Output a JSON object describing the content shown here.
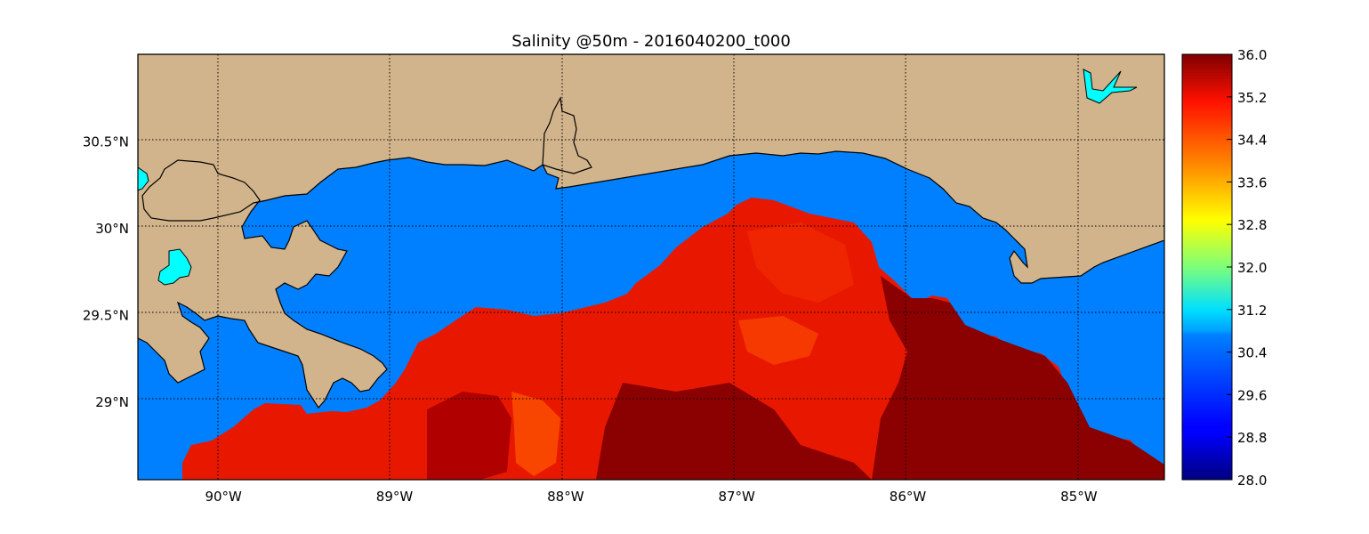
{
  "title": "Salinity @50m - 2016040200_t000",
  "colors": {
    "land": "#d2b48c",
    "water_low": "#0080ff",
    "lake": "#00ffff",
    "coast": "#000000",
    "grid": "#000000"
  },
  "map": {
    "lon_range": [
      -90.5,
      -84.5
    ],
    "lat_range": [
      28.55,
      31.0
    ],
    "grid": "dotted"
  },
  "x_ticks": [
    {
      "value": -90,
      "label": "90°W"
    },
    {
      "value": -89,
      "label": "89°W"
    },
    {
      "value": -88,
      "label": "88°W"
    },
    {
      "value": -87,
      "label": "87°W"
    },
    {
      "value": -86,
      "label": "86°W"
    },
    {
      "value": -85,
      "label": "85°W"
    }
  ],
  "y_ticks": [
    {
      "value": 30.5,
      "label": "30.5°N"
    },
    {
      "value": 30.0,
      "label": "30°N"
    },
    {
      "value": 29.5,
      "label": "29.5°N"
    },
    {
      "value": 29.0,
      "label": "29°N"
    }
  ],
  "colorbar": {
    "min": 28.0,
    "max": 36.0,
    "colormap": "jet",
    "ticks": [
      "28.0",
      "28.8",
      "29.6",
      "30.4",
      "31.2",
      "32.0",
      "32.8",
      "33.6",
      "34.4",
      "35.2",
      "36.0"
    ]
  }
}
